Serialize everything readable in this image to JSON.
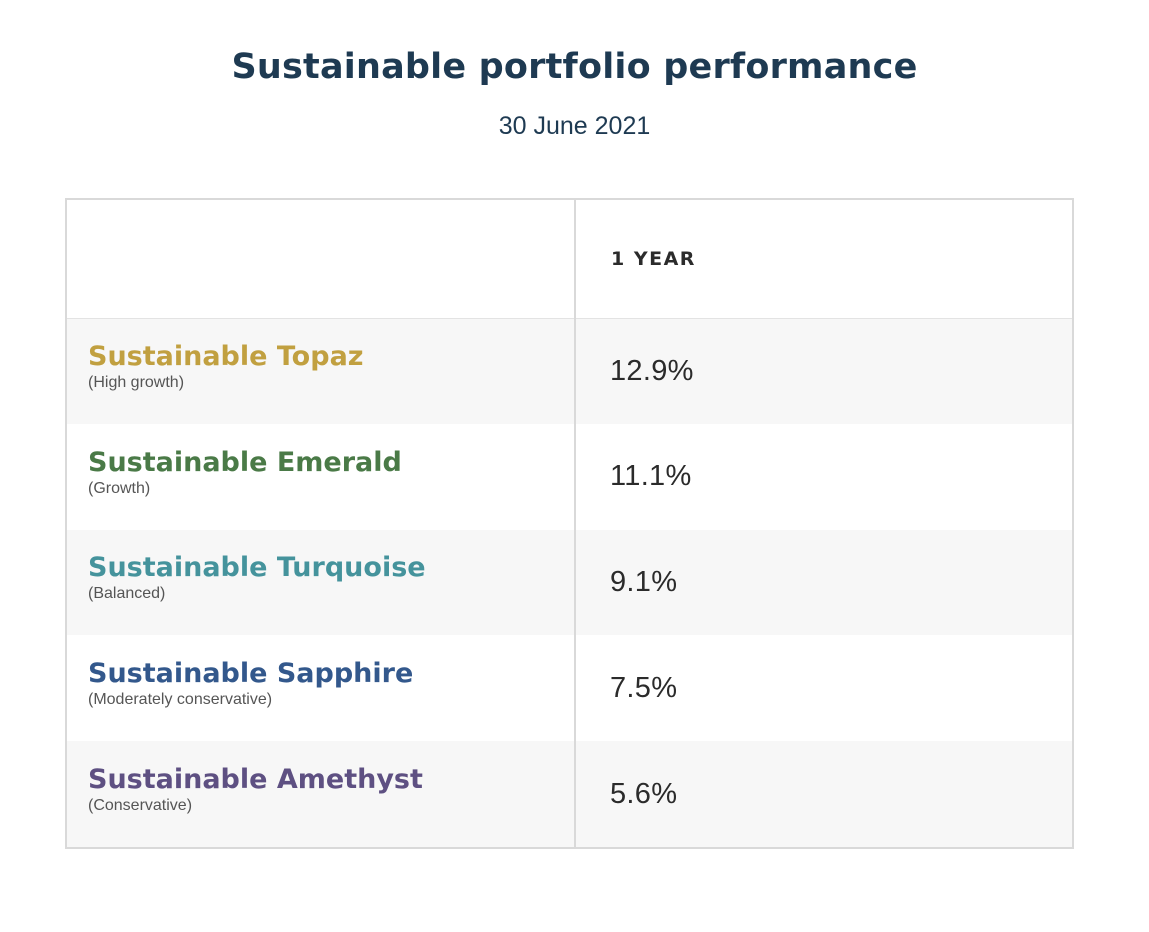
{
  "colors": {
    "title": "#1e3a52",
    "topaz": "#c1a040",
    "emerald": "#4a7a47",
    "turquoise": "#45939c",
    "sapphire": "#33588c",
    "amethyst": "#5e5082"
  },
  "chart_data": {
    "type": "table",
    "title": "Sustainable portfolio performance",
    "subtitle": "30 June 2021",
    "columns": [
      "",
      "1 YEAR"
    ],
    "rows": [
      {
        "name": "Sustainable Topaz",
        "risk": "(High growth)",
        "value": "12.9%",
        "color": "#c1a040"
      },
      {
        "name": "Sustainable Emerald",
        "risk": "(Growth)",
        "value": "11.1%",
        "color": "#4a7a47"
      },
      {
        "name": "Sustainable Turquoise",
        "risk": "(Balanced)",
        "value": "9.1%",
        "color": "#45939c"
      },
      {
        "name": "Sustainable Sapphire",
        "risk": "(Moderately conservative)",
        "value": "7.5%",
        "color": "#33588c"
      },
      {
        "name": "Sustainable Amethyst",
        "risk": "(Conservative)",
        "value": "5.6%",
        "color": "#5e5082"
      }
    ]
  }
}
